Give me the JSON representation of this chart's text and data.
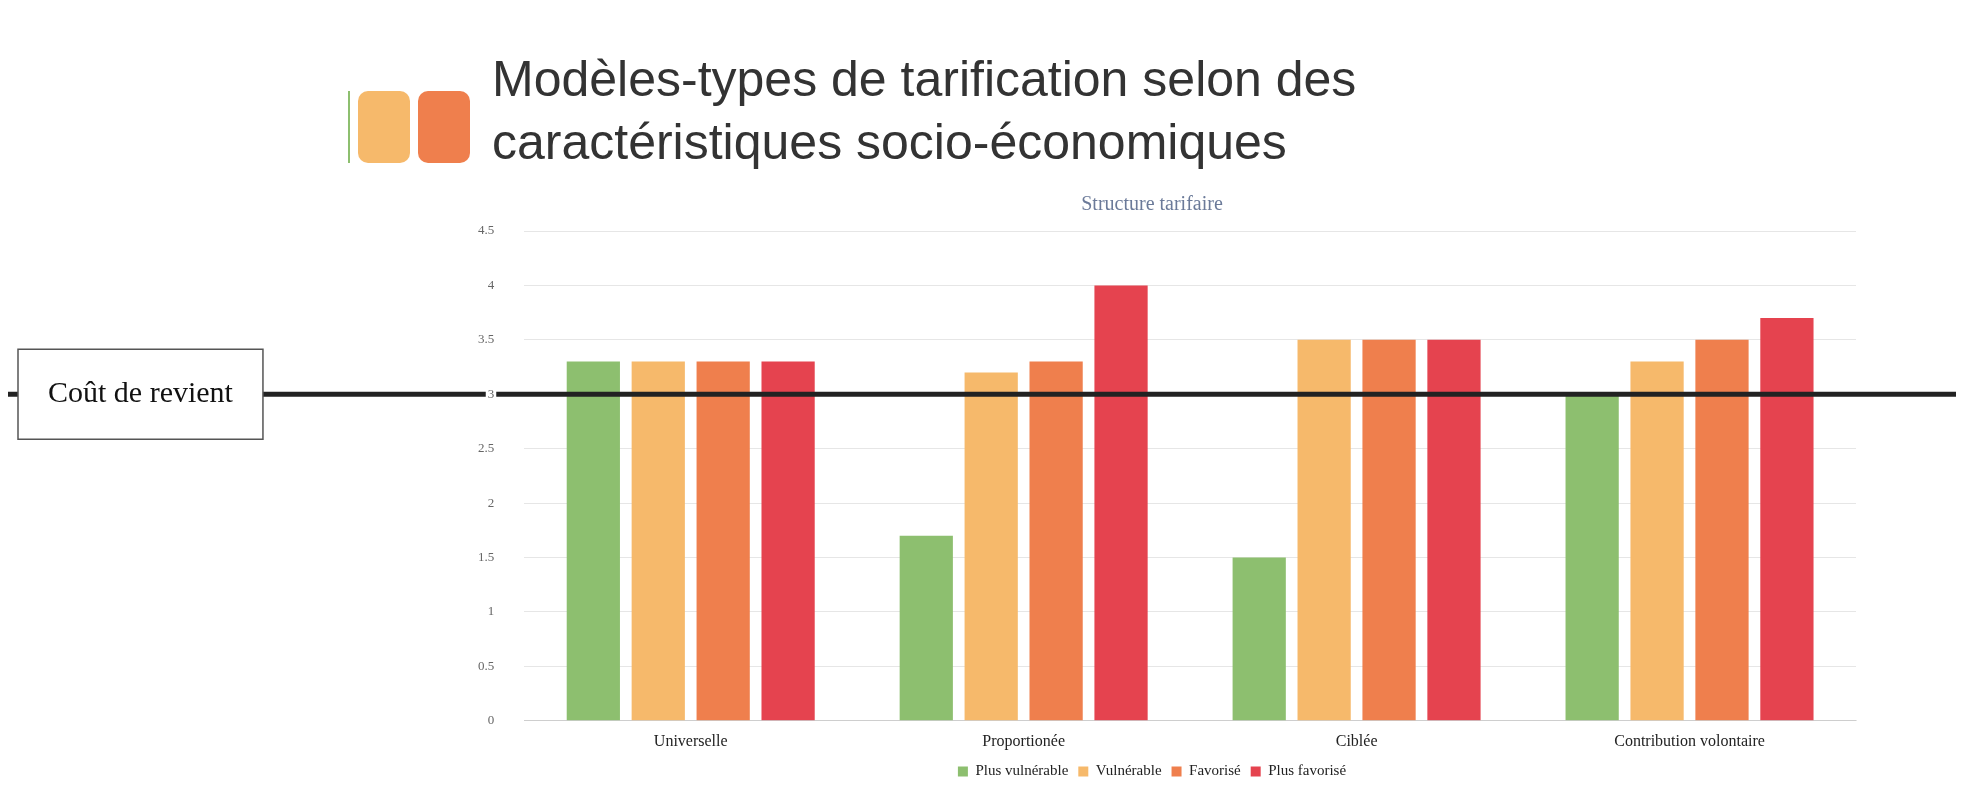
{
  "chart_data": {
    "type": "bar",
    "title": "Modèles-types de tarification selon des caractéristiques socio-économiques",
    "subtitle": "Structure tarifaire",
    "categories": [
      "Universelle",
      "Proportionée",
      "Ciblée",
      "Contribution volontaire"
    ],
    "series": [
      {
        "name": "Plus vulnérable",
        "color": "#8dbf6f",
        "values": [
          3.3,
          1.7,
          1.5,
          3.0
        ]
      },
      {
        "name": "Vulnérable",
        "color": "#f6b96b",
        "values": [
          3.3,
          3.2,
          3.5,
          3.3
        ]
      },
      {
        "name": "Favorisé",
        "color": "#ef7f4d",
        "values": [
          3.3,
          3.3,
          3.5,
          3.5
        ]
      },
      {
        "name": "Plus favorisé",
        "color": "#e5434f",
        "values": [
          3.3,
          4.0,
          3.5,
          3.7
        ]
      }
    ],
    "ylim": [
      0,
      4.5
    ],
    "yticks": [
      0,
      0.5,
      1,
      1.5,
      2,
      2.5,
      3,
      3.5,
      4,
      4.5
    ],
    "grid": "y",
    "legend": "bottom",
    "ref_lines": [
      {
        "axis": "y",
        "value": 3,
        "label": "Coût de revient",
        "color": "#222222"
      }
    ]
  }
}
